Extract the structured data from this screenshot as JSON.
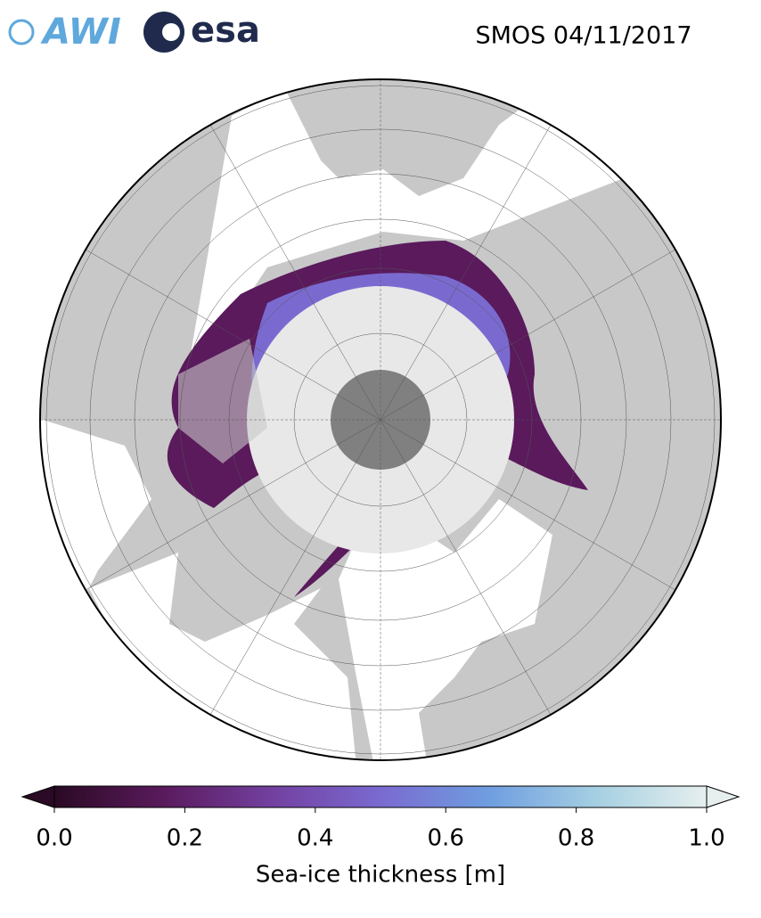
{
  "header": {
    "title": "SMOS 04/11/2017",
    "logos": [
      "AWI",
      "esa"
    ]
  },
  "colorbar": {
    "label": "Sea-ice thickness [m]",
    "lim": [
      0,
      1
    ],
    "ticks": [
      {
        "value": 0,
        "label": "0.0"
      },
      {
        "value": 0.2,
        "label": "0.2"
      },
      {
        "value": 0.4,
        "label": "0.4"
      },
      {
        "value": 0.6,
        "label": "0.6"
      },
      {
        "value": 0.8,
        "label": "0.8"
      },
      {
        "value": 1,
        "label": "1.0"
      }
    ],
    "colors": [
      "#2a0a24",
      "#5a1a5c",
      "#7340a0",
      "#7a6ad0",
      "#6f9ee0",
      "#a6d0e2",
      "#e6efee"
    ]
  }
}
